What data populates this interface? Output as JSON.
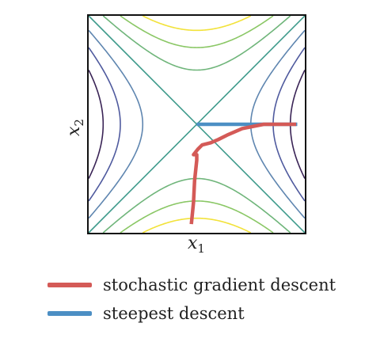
{
  "chart_data": {
    "type": "line",
    "xlabel": "x",
    "xlabel_sub": "1",
    "ylabel": "x",
    "ylabel_sub": "2",
    "xlim": [
      -1,
      1
    ],
    "ylim": [
      -1,
      1
    ],
    "grid": false,
    "function": "f(x1, x2) = x1^2 - x2^2",
    "contour_levels": [
      -0.75,
      -0.5,
      -0.25,
      0,
      0.25,
      0.5,
      0.75
    ],
    "contour_colors": {
      "-0.75": "#f2e23a",
      "-0.5": "#8ac765",
      "-0.25": "#6fb57a",
      "0": "#3f9b8c",
      "0.25": "#5f86b0",
      "0.5": "#4f5a9e",
      "0.75": "#3a2456"
    },
    "series": [
      {
        "name": "stochastic gradient descent",
        "color": "#d45a57",
        "x": [
          -0.05,
          -0.03,
          -0.02,
          0.0,
          0.0,
          -0.03,
          0.01,
          0.05,
          0.13,
          0.2,
          0.28,
          0.42,
          0.62,
          0.82,
          0.92
        ],
        "y": [
          -0.92,
          -0.72,
          -0.52,
          -0.33,
          -0.28,
          -0.28,
          -0.23,
          -0.19,
          -0.17,
          -0.14,
          -0.1,
          -0.04,
          0.0,
          0.0,
          0.0
        ]
      },
      {
        "name": "steepest descent",
        "color": "#4c8fc4",
        "x": [
          0.0,
          0.93
        ],
        "y": [
          0.0,
          0.0
        ]
      }
    ],
    "legend_position": "bottom"
  },
  "legend": {
    "items": [
      {
        "label": "stochastic gradient descent",
        "color": "#d45a57"
      },
      {
        "label": "steepest descent",
        "color": "#4c8fc4"
      }
    ]
  }
}
